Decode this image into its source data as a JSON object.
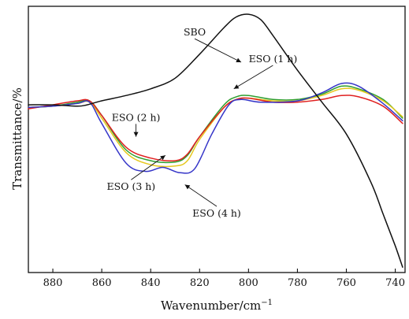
{
  "chart_data": {
    "type": "line",
    "title": "",
    "xlabel": "Wavenumber/cm",
    "xlabel_superscript": "−1",
    "ylabel": "Transmittance/%",
    "xlim": [
      890,
      736
    ],
    "ylim": [
      0,
      100
    ],
    "x_reversed": true,
    "xticks": [
      880,
      860,
      840,
      820,
      800,
      780,
      760,
      740
    ],
    "legend": "none",
    "grid": false,
    "series": [
      {
        "name": "SBO",
        "color": "#111111",
        "points": [
          [
            890,
            63
          ],
          [
            880,
            63
          ],
          [
            870,
            62.5
          ],
          [
            866,
            63
          ],
          [
            860,
            64.5
          ],
          [
            850,
            66.5
          ],
          [
            840,
            69
          ],
          [
            830,
            73
          ],
          [
            820,
            82
          ],
          [
            810,
            92
          ],
          [
            805,
            96
          ],
          [
            800,
            97
          ],
          [
            795,
            95
          ],
          [
            790,
            89
          ],
          [
            780,
            76
          ],
          [
            770,
            64
          ],
          [
            760,
            52
          ],
          [
            750,
            34
          ],
          [
            745,
            22
          ],
          [
            740,
            10
          ],
          [
            737,
            2
          ]
        ]
      },
      {
        "name": "ESO (1 h)",
        "color": "#2f9e2f",
        "points": [
          [
            890,
            62
          ],
          [
            880,
            62.5
          ],
          [
            870,
            64
          ],
          [
            865,
            64.5
          ],
          [
            860,
            59
          ],
          [
            850,
            46
          ],
          [
            840,
            42
          ],
          [
            830,
            41.5
          ],
          [
            825,
            44
          ],
          [
            820,
            51
          ],
          [
            810,
            63
          ],
          [
            805,
            66
          ],
          [
            800,
            66.5
          ],
          [
            790,
            65
          ],
          [
            780,
            65
          ],
          [
            770,
            67
          ],
          [
            762,
            70
          ],
          [
            755,
            69
          ],
          [
            745,
            65
          ],
          [
            737,
            58
          ]
        ]
      },
      {
        "name": "ESO (2 h)",
        "color": "#e02020",
        "points": [
          [
            890,
            61.5
          ],
          [
            880,
            63
          ],
          [
            870,
            64.5
          ],
          [
            865,
            64.5
          ],
          [
            860,
            59
          ],
          [
            850,
            47
          ],
          [
            840,
            43
          ],
          [
            830,
            42
          ],
          [
            825,
            44.5
          ],
          [
            820,
            51
          ],
          [
            810,
            62
          ],
          [
            805,
            65
          ],
          [
            800,
            65.5
          ],
          [
            790,
            64
          ],
          [
            780,
            64
          ],
          [
            770,
            65
          ],
          [
            762,
            66.5
          ],
          [
            755,
            66
          ],
          [
            745,
            62.5
          ],
          [
            737,
            56
          ]
        ]
      },
      {
        "name": "ESO (3 h)",
        "color": "#e6c81e",
        "points": [
          [
            890,
            62
          ],
          [
            880,
            62.5
          ],
          [
            870,
            63.5
          ],
          [
            865,
            64
          ],
          [
            860,
            58
          ],
          [
            850,
            45
          ],
          [
            840,
            40.5
          ],
          [
            830,
            40
          ],
          [
            825,
            42
          ],
          [
            820,
            50
          ],
          [
            810,
            62
          ],
          [
            805,
            65
          ],
          [
            800,
            65.5
          ],
          [
            790,
            64.5
          ],
          [
            780,
            64.5
          ],
          [
            770,
            66.5
          ],
          [
            762,
            69
          ],
          [
            755,
            68.5
          ],
          [
            745,
            64.5
          ],
          [
            737,
            58.5
          ]
        ]
      },
      {
        "name": "ESO (4 h)",
        "color": "#3535c8",
        "points": [
          [
            890,
            62
          ],
          [
            880,
            62.5
          ],
          [
            870,
            63.5
          ],
          [
            865,
            64
          ],
          [
            860,
            56
          ],
          [
            850,
            41
          ],
          [
            842,
            38
          ],
          [
            835,
            39.5
          ],
          [
            828,
            37.5
          ],
          [
            822,
            39
          ],
          [
            815,
            52
          ],
          [
            808,
            63
          ],
          [
            803,
            65
          ],
          [
            795,
            64
          ],
          [
            780,
            64.5
          ],
          [
            770,
            67.5
          ],
          [
            762,
            71
          ],
          [
            755,
            70
          ],
          [
            745,
            63.5
          ],
          [
            737,
            57
          ]
        ]
      }
    ],
    "annotations": [
      {
        "text": "SBO",
        "x": 822,
        "y": 89,
        "arrow_to": [
          803,
          79
        ]
      },
      {
        "text": "ESO (1 h)",
        "x": 790,
        "y": 79,
        "arrow_to": [
          806,
          69
        ]
      },
      {
        "text": "ESO (2 h)",
        "x": 846,
        "y": 57,
        "arrow_to": [
          846,
          51
        ]
      },
      {
        "text": "ESO (3 h)",
        "x": 848,
        "y": 31,
        "arrow_to": [
          834,
          44
        ]
      },
      {
        "text": "ESO (4 h)",
        "x": 813,
        "y": 21,
        "arrow_to": [
          826,
          33
        ]
      }
    ]
  }
}
